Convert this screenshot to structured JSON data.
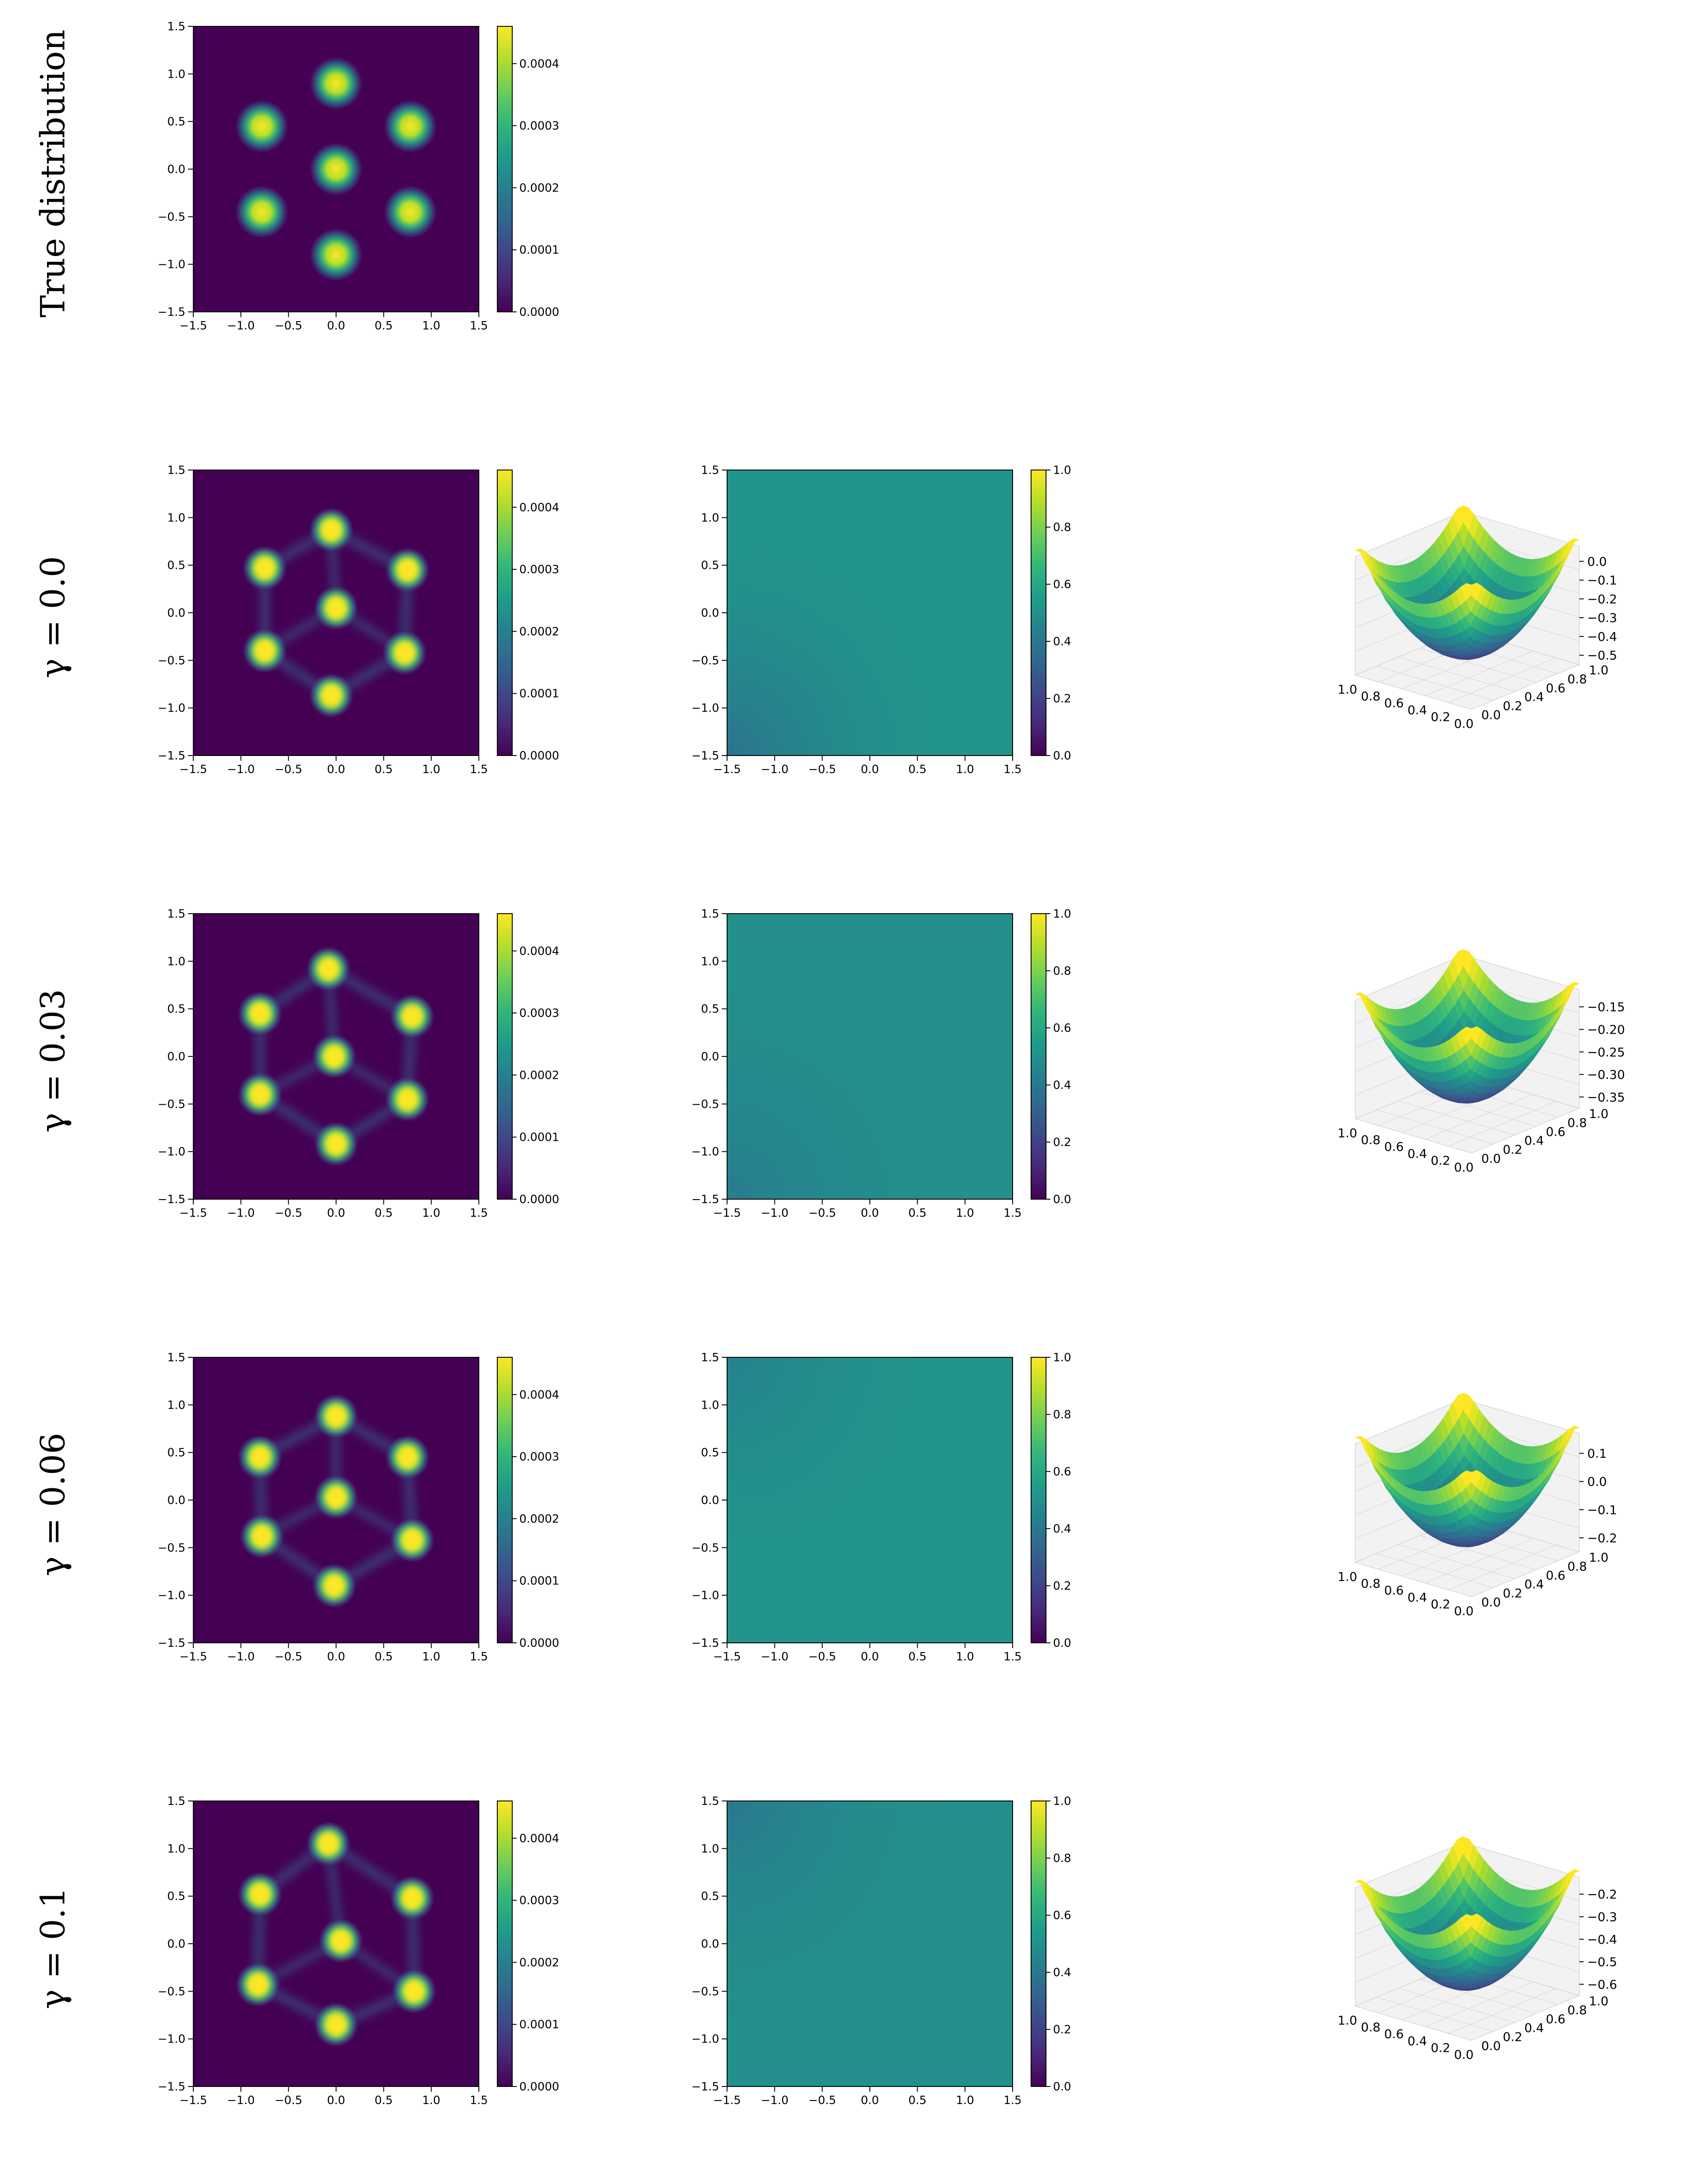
{
  "row_labels": [
    "True distribution",
    "γ = 0.0",
    "γ = 0.03",
    "γ = 0.06",
    "γ = 0.1"
  ],
  "colormap": [
    "#440154",
    "#482878",
    "#3e4989",
    "#31688e",
    "#26828e",
    "#1f9e89",
    "#35b779",
    "#6ece58",
    "#b5de2b",
    "#fde725"
  ],
  "chart_data": [
    {
      "type": "heatmap",
      "row": 0,
      "col": 0,
      "title": "",
      "xlim": [
        -1.5,
        1.5
      ],
      "ylim": [
        -1.5,
        1.5
      ],
      "xticks": [
        "−1.5",
        "−1.0",
        "−0.5",
        "0.0",
        "0.5",
        "1.0",
        "1.5"
      ],
      "yticks": [
        "−1.5",
        "−1.0",
        "−0.5",
        "0.0",
        "0.5",
        "1.0",
        "1.5"
      ],
      "colorbar": {
        "range": [
          0,
          0.00046
        ],
        "ticks": [
          "0.0000",
          "0.0001",
          "0.0002",
          "0.0003",
          "0.0004"
        ],
        "tick_values": [
          0,
          0.0001,
          0.0002,
          0.0003,
          0.0004
        ]
      },
      "modes": [
        [
          0,
          0.9
        ],
        [
          0.78,
          0.45
        ],
        [
          0.78,
          -0.45
        ],
        [
          0,
          -0.9
        ],
        [
          -0.78,
          -0.45
        ],
        [
          -0.78,
          0.45
        ],
        [
          0,
          0
        ]
      ],
      "peak_density": 0.00046
    },
    {
      "type": "heatmap",
      "row": 1,
      "col": 0,
      "xlim": [
        -1.5,
        1.5
      ],
      "ylim": [
        -1.5,
        1.5
      ],
      "xticks": [
        "−1.5",
        "−1.0",
        "−0.5",
        "0.0",
        "0.5",
        "1.0",
        "1.5"
      ],
      "yticks": [
        "−1.5",
        "−1.0",
        "−0.5",
        "0.0",
        "0.5",
        "1.0",
        "1.5"
      ],
      "colorbar": {
        "range": [
          0,
          0.00046
        ],
        "ticks": [
          "0.0000",
          "0.0001",
          "0.0002",
          "0.0003",
          "0.0004"
        ],
        "tick_values": [
          0,
          0.0001,
          0.0002,
          0.0003,
          0.0004
        ]
      },
      "modes": [
        [
          -0.05,
          0.87
        ],
        [
          0.75,
          0.45
        ],
        [
          0.72,
          -0.42
        ],
        [
          -0.05,
          -0.87
        ],
        [
          -0.75,
          -0.4
        ],
        [
          -0.75,
          0.47
        ],
        [
          0.0,
          0.05
        ]
      ],
      "peak_density": 0.00046
    },
    {
      "type": "heatmap",
      "row": 1,
      "col": 1,
      "xlim": [
        -1.5,
        1.5
      ],
      "ylim": [
        -1.5,
        1.5
      ],
      "xticks": [
        "−1.5",
        "−1.0",
        "−0.5",
        "0.0",
        "0.5",
        "1.0",
        "1.5"
      ],
      "yticks": [
        "−1.5",
        "−1.0",
        "−0.5",
        "0.0",
        "0.5",
        "1.0",
        "1.5"
      ],
      "colorbar": {
        "range": [
          0,
          1
        ],
        "ticks": [
          "0.0",
          "0.2",
          "0.4",
          "0.6",
          "0.8",
          "1.0"
        ],
        "tick_values": [
          0,
          0.2,
          0.4,
          0.6,
          0.8,
          1.0
        ]
      },
      "field": {
        "center": 0.52,
        "low_corner": "bottom-left",
        "low_value": 0.38
      }
    },
    {
      "type": "surface3d",
      "row": 1,
      "col": 2,
      "xticks": [
        "1.0",
        "0.8",
        "0.6",
        "0.4",
        "0.2",
        "0.0"
      ],
      "yticks": [
        "0.0",
        "0.2",
        "0.4",
        "0.6",
        "0.8",
        "1.0"
      ],
      "zticks": [
        "0.0",
        "−0.1",
        "−0.2",
        "−0.3",
        "−0.4",
        "−0.5"
      ],
      "zlim": [
        -0.5,
        0.0
      ]
    },
    {
      "type": "heatmap",
      "row": 2,
      "col": 0,
      "xlim": [
        -1.5,
        1.5
      ],
      "ylim": [
        -1.5,
        1.5
      ],
      "xticks": [
        "−1.5",
        "−1.0",
        "−0.5",
        "0.0",
        "0.5",
        "1.0",
        "1.5"
      ],
      "yticks": [
        "−1.5",
        "−1.0",
        "−0.5",
        "0.0",
        "0.5",
        "1.0",
        "1.5"
      ],
      "colorbar": {
        "range": [
          0,
          0.00046
        ],
        "ticks": [
          "0.0000",
          "0.0001",
          "0.0002",
          "0.0003",
          "0.0004"
        ],
        "tick_values": [
          0,
          0.0001,
          0.0002,
          0.0003,
          0.0004
        ]
      },
      "modes": [
        [
          -0.08,
          0.92
        ],
        [
          0.8,
          0.42
        ],
        [
          0.75,
          -0.45
        ],
        [
          0.0,
          -0.92
        ],
        [
          -0.8,
          -0.4
        ],
        [
          -0.8,
          0.45
        ],
        [
          -0.02,
          0.0
        ]
      ],
      "peak_density": 0.00046
    },
    {
      "type": "heatmap",
      "row": 2,
      "col": 1,
      "xlim": [
        -1.5,
        1.5
      ],
      "ylim": [
        -1.5,
        1.5
      ],
      "xticks": [
        "−1.5",
        "−1.0",
        "−0.5",
        "0.0",
        "0.5",
        "1.0",
        "1.5"
      ],
      "yticks": [
        "−1.5",
        "−1.0",
        "−0.5",
        "0.0",
        "0.5",
        "1.0",
        "1.5"
      ],
      "colorbar": {
        "range": [
          0,
          1
        ],
        "ticks": [
          "0.0",
          "0.2",
          "0.4",
          "0.6",
          "0.8",
          "1.0"
        ],
        "tick_values": [
          0,
          0.2,
          0.4,
          0.6,
          0.8,
          1.0
        ]
      },
      "field": {
        "center": 0.5,
        "low_corner": "bottom-left",
        "low_value": 0.42
      }
    },
    {
      "type": "surface3d",
      "row": 2,
      "col": 2,
      "xticks": [
        "1.0",
        "0.8",
        "0.6",
        "0.4",
        "0.2",
        "0.0"
      ],
      "yticks": [
        "0.0",
        "0.2",
        "0.4",
        "0.6",
        "0.8",
        "1.0"
      ],
      "zticks": [
        "−0.15",
        "−0.20",
        "−0.25",
        "−0.30",
        "−0.35"
      ],
      "zlim": [
        -0.38,
        -0.12
      ]
    },
    {
      "type": "heatmap",
      "row": 3,
      "col": 0,
      "xlim": [
        -1.5,
        1.5
      ],
      "ylim": [
        -1.5,
        1.5
      ],
      "xticks": [
        "−1.5",
        "−1.0",
        "−0.5",
        "0.0",
        "0.5",
        "1.0",
        "1.5"
      ],
      "yticks": [
        "−1.5",
        "−1.0",
        "−0.5",
        "0.0",
        "0.5",
        "1.0",
        "1.5"
      ],
      "colorbar": {
        "range": [
          0,
          0.00046
        ],
        "ticks": [
          "0.0000",
          "0.0001",
          "0.0002",
          "0.0003",
          "0.0004"
        ],
        "tick_values": [
          0,
          0.0001,
          0.0002,
          0.0003,
          0.0004
        ]
      },
      "modes": [
        [
          0.0,
          0.88
        ],
        [
          0.75,
          0.45
        ],
        [
          0.8,
          -0.42
        ],
        [
          -0.02,
          -0.9
        ],
        [
          -0.78,
          -0.38
        ],
        [
          -0.8,
          0.45
        ],
        [
          0.0,
          0.03
        ]
      ],
      "peak_density": 0.00046
    },
    {
      "type": "heatmap",
      "row": 3,
      "col": 1,
      "xlim": [
        -1.5,
        1.5
      ],
      "ylim": [
        -1.5,
        1.5
      ],
      "xticks": [
        "−1.5",
        "−1.0",
        "−0.5",
        "0.0",
        "0.5",
        "1.0",
        "1.5"
      ],
      "yticks": [
        "−1.5",
        "−1.0",
        "−0.5",
        "0.0",
        "0.5",
        "1.0",
        "1.5"
      ],
      "colorbar": {
        "range": [
          0,
          1
        ],
        "ticks": [
          "0.0",
          "0.2",
          "0.4",
          "0.6",
          "0.8",
          "1.0"
        ],
        "tick_values": [
          0,
          0.2,
          0.4,
          0.6,
          0.8,
          1.0
        ]
      },
      "field": {
        "center": 0.52,
        "low_corner": "top-left",
        "low_value": 0.44
      }
    },
    {
      "type": "surface3d",
      "row": 3,
      "col": 2,
      "xticks": [
        "1.0",
        "0.8",
        "0.6",
        "0.4",
        "0.2",
        "0.0"
      ],
      "yticks": [
        "0.0",
        "0.2",
        "0.4",
        "0.6",
        "0.8",
        "1.0"
      ],
      "zticks": [
        "0.1",
        "0.0",
        "−0.1",
        "−0.2"
      ],
      "zlim": [
        -0.25,
        0.15
      ]
    },
    {
      "type": "heatmap",
      "row": 4,
      "col": 0,
      "xlim": [
        -1.5,
        1.5
      ],
      "ylim": [
        -1.5,
        1.5
      ],
      "xticks": [
        "−1.5",
        "−1.0",
        "−0.5",
        "0.0",
        "0.5",
        "1.0",
        "1.5"
      ],
      "yticks": [
        "−1.5",
        "−1.0",
        "−0.5",
        "0.0",
        "0.5",
        "1.0",
        "1.5"
      ],
      "colorbar": {
        "range": [
          0,
          0.00046
        ],
        "ticks": [
          "0.0000",
          "0.0001",
          "0.0002",
          "0.0003",
          "0.0004"
        ],
        "tick_values": [
          0,
          0.0001,
          0.0002,
          0.0003,
          0.0004
        ]
      },
      "modes": [
        [
          -0.08,
          1.05
        ],
        [
          0.8,
          0.48
        ],
        [
          0.82,
          -0.5
        ],
        [
          0.0,
          -0.85
        ],
        [
          -0.82,
          -0.43
        ],
        [
          -0.8,
          0.52
        ],
        [
          0.05,
          0.03
        ]
      ],
      "peak_density": 0.00046
    },
    {
      "type": "heatmap",
      "row": 4,
      "col": 1,
      "xlim": [
        -1.5,
        1.5
      ],
      "ylim": [
        -1.5,
        1.5
      ],
      "xticks": [
        "−1.5",
        "−1.0",
        "−0.5",
        "0.0",
        "0.5",
        "1.0",
        "1.5"
      ],
      "yticks": [
        "−1.5",
        "−1.0",
        "−0.5",
        "0.0",
        "0.5",
        "1.0",
        "1.5"
      ],
      "colorbar": {
        "range": [
          0,
          1
        ],
        "ticks": [
          "0.0",
          "0.2",
          "0.4",
          "0.6",
          "0.8",
          "1.0"
        ],
        "tick_values": [
          0,
          0.2,
          0.4,
          0.6,
          0.8,
          1.0
        ]
      },
      "field": {
        "center": 0.5,
        "low_corner": "top-left",
        "low_value": 0.4
      }
    },
    {
      "type": "surface3d",
      "row": 4,
      "col": 2,
      "xticks": [
        "1.0",
        "0.8",
        "0.6",
        "0.4",
        "0.2",
        "0.0"
      ],
      "yticks": [
        "0.0",
        "0.2",
        "0.4",
        "0.6",
        "0.8",
        "1.0"
      ],
      "zticks": [
        "−0.2",
        "−0.3",
        "−0.4",
        "−0.5",
        "−0.6"
      ],
      "zlim": [
        -0.65,
        -0.15
      ]
    }
  ]
}
